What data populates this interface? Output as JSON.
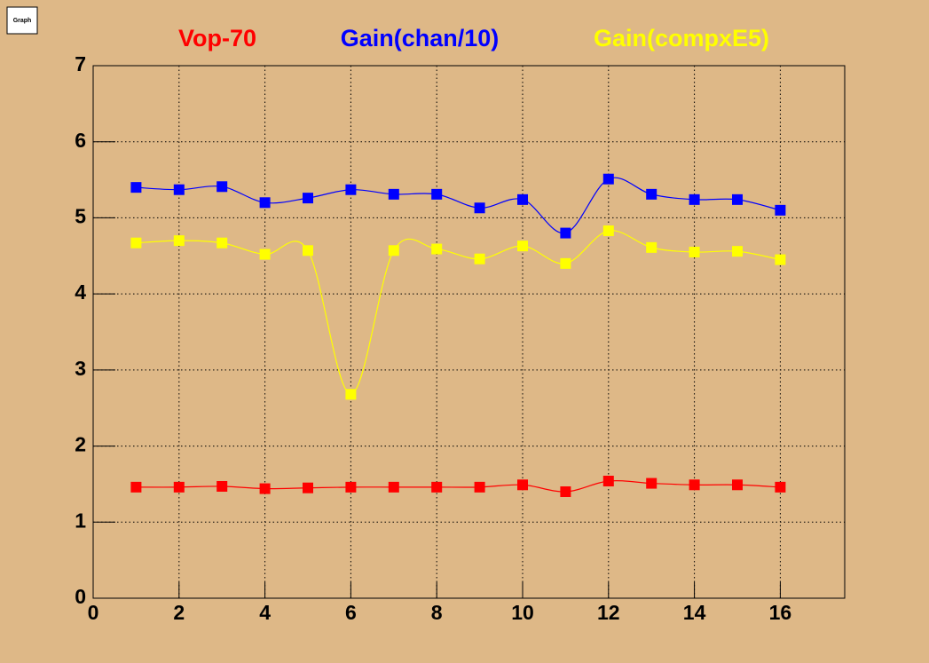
{
  "window_label": "Graph",
  "chart_data": {
    "type": "line",
    "x": [
      1,
      2,
      3,
      4,
      5,
      6,
      7,
      8,
      9,
      10,
      11,
      12,
      13,
      14,
      15,
      16
    ],
    "series": [
      {
        "name": "Vop-70",
        "color": "#ff0000",
        "values": [
          1.46,
          1.46,
          1.47,
          1.44,
          1.45,
          1.46,
          1.46,
          1.46,
          1.46,
          1.49,
          1.4,
          1.54,
          1.51,
          1.49,
          1.49,
          1.46
        ]
      },
      {
        "name": "Gain(chan/10)",
        "color": "#0000ff",
        "values": [
          5.4,
          5.37,
          5.41,
          5.2,
          5.26,
          5.37,
          5.31,
          5.31,
          5.13,
          5.24,
          4.8,
          5.51,
          5.31,
          5.24,
          5.24,
          5.1
        ]
      },
      {
        "name": "Gain(compxE5)",
        "color": "#ffff00",
        "values": [
          4.67,
          4.7,
          4.67,
          4.52,
          4.57,
          2.68,
          4.57,
          4.59,
          4.46,
          4.63,
          4.4,
          4.83,
          4.61,
          4.55,
          4.56,
          4.45
        ]
      }
    ],
    "xlim": [
      0,
      17.5
    ],
    "xticks": [
      0,
      2,
      4,
      6,
      8,
      10,
      12,
      14,
      16
    ],
    "ylim": [
      0,
      7
    ],
    "yticks": [
      0,
      1,
      2,
      3,
      4,
      5,
      6,
      7
    ],
    "grid": true
  }
}
